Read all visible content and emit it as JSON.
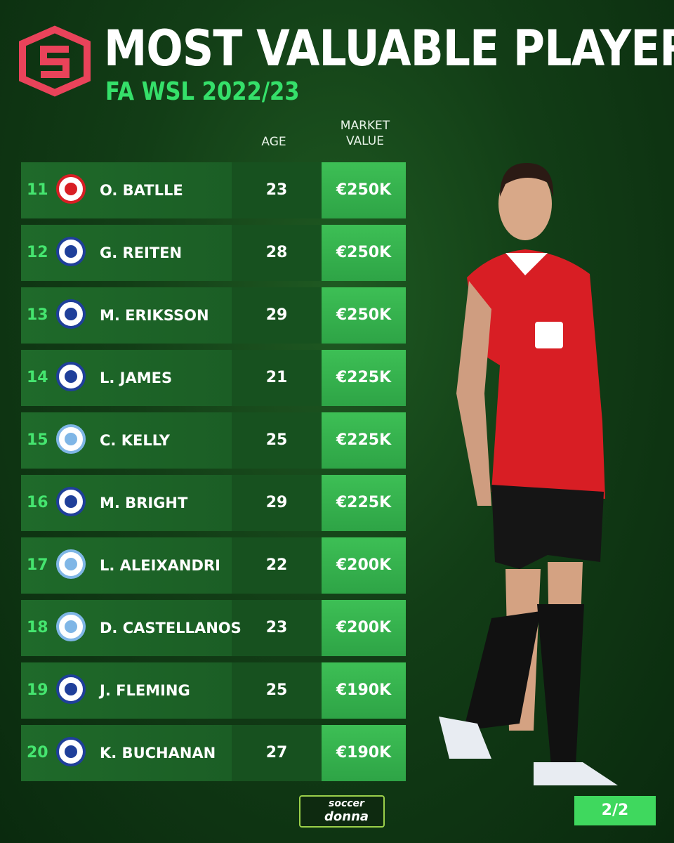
{
  "header": {
    "title": "MOST VALUABLE PLAYER",
    "subtitle": "FA WSL 2022/23"
  },
  "table": {
    "columns": [
      "AGE",
      "MARKET VALUE"
    ],
    "rows": [
      [
        11,
        "O. BATLLE",
        23,
        "€250K"
      ],
      [
        12,
        "G. REITEN",
        28,
        "€250K"
      ],
      [
        13,
        "M. ERIKSSON",
        29,
        "€250K"
      ],
      [
        14,
        "L. JAMES",
        21,
        "€225K"
      ],
      [
        15,
        "C. KELLY",
        25,
        "€225K"
      ],
      [
        16,
        "M. BRIGHT",
        29,
        "€225K"
      ],
      [
        17,
        "L. ALEIXANDRI",
        22,
        "€200K"
      ],
      [
        18,
        "D. CASTELLANOS",
        23,
        "€200K"
      ],
      [
        19,
        "J. FLEMING",
        25,
        "€190K"
      ],
      [
        20,
        "K. BUCHANAN",
        27,
        "€190K"
      ]
    ]
  },
  "footer": {
    "brand_top": "soccer",
    "brand_bottom": "donna",
    "page": "2/2"
  }
}
